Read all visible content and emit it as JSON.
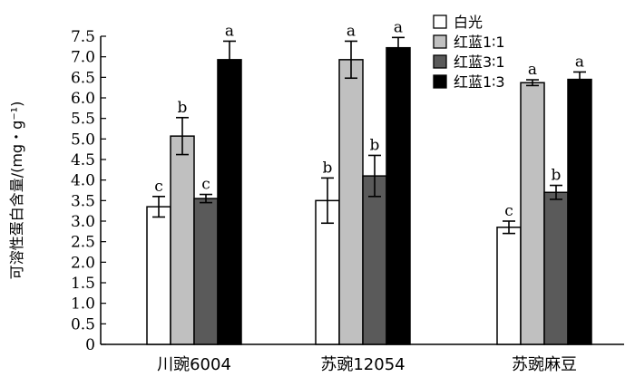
{
  "chart_data": {
    "type": "bar",
    "ylabel": "可溶性蛋白含量/(mg・g⁻¹)",
    "xlabel": "",
    "ylim": [
      0,
      7.5
    ],
    "yticks": [
      "0",
      "0.5",
      "1.0",
      "1.5",
      "2.0",
      "2.5",
      "3.0",
      "3.5",
      "4.0",
      "4.5",
      "5.0",
      "5.5",
      "6.0",
      "6.5",
      "7.0",
      "7.5"
    ],
    "categories": [
      "川豌6004",
      "苏豌12054",
      "苏豌麻豆"
    ],
    "series": [
      {
        "name": "白光",
        "color": "#ffffff",
        "values": [
          3.35,
          3.5,
          2.85
        ],
        "errors": [
          0.25,
          0.55,
          0.15
        ],
        "labels": [
          "c",
          "b",
          "c"
        ]
      },
      {
        "name": "红蓝1∶1",
        "color": "#c0c0c0",
        "values": [
          5.07,
          6.93,
          6.37
        ],
        "errors": [
          0.45,
          0.45,
          0.07
        ],
        "labels": [
          "b",
          "a",
          "a"
        ]
      },
      {
        "name": "红蓝3∶1",
        "color": "#5a5a5a",
        "values": [
          3.55,
          4.1,
          3.7
        ],
        "errors": [
          0.1,
          0.5,
          0.17
        ],
        "labels": [
          "c",
          "b",
          "b"
        ]
      },
      {
        "name": "红蓝1∶3",
        "color": "#000000",
        "values": [
          6.93,
          7.22,
          6.45
        ],
        "errors": [
          0.45,
          0.25,
          0.18
        ],
        "labels": [
          "a",
          "a",
          "a"
        ]
      }
    ],
    "legend_position": "top-right",
    "grid": false
  }
}
